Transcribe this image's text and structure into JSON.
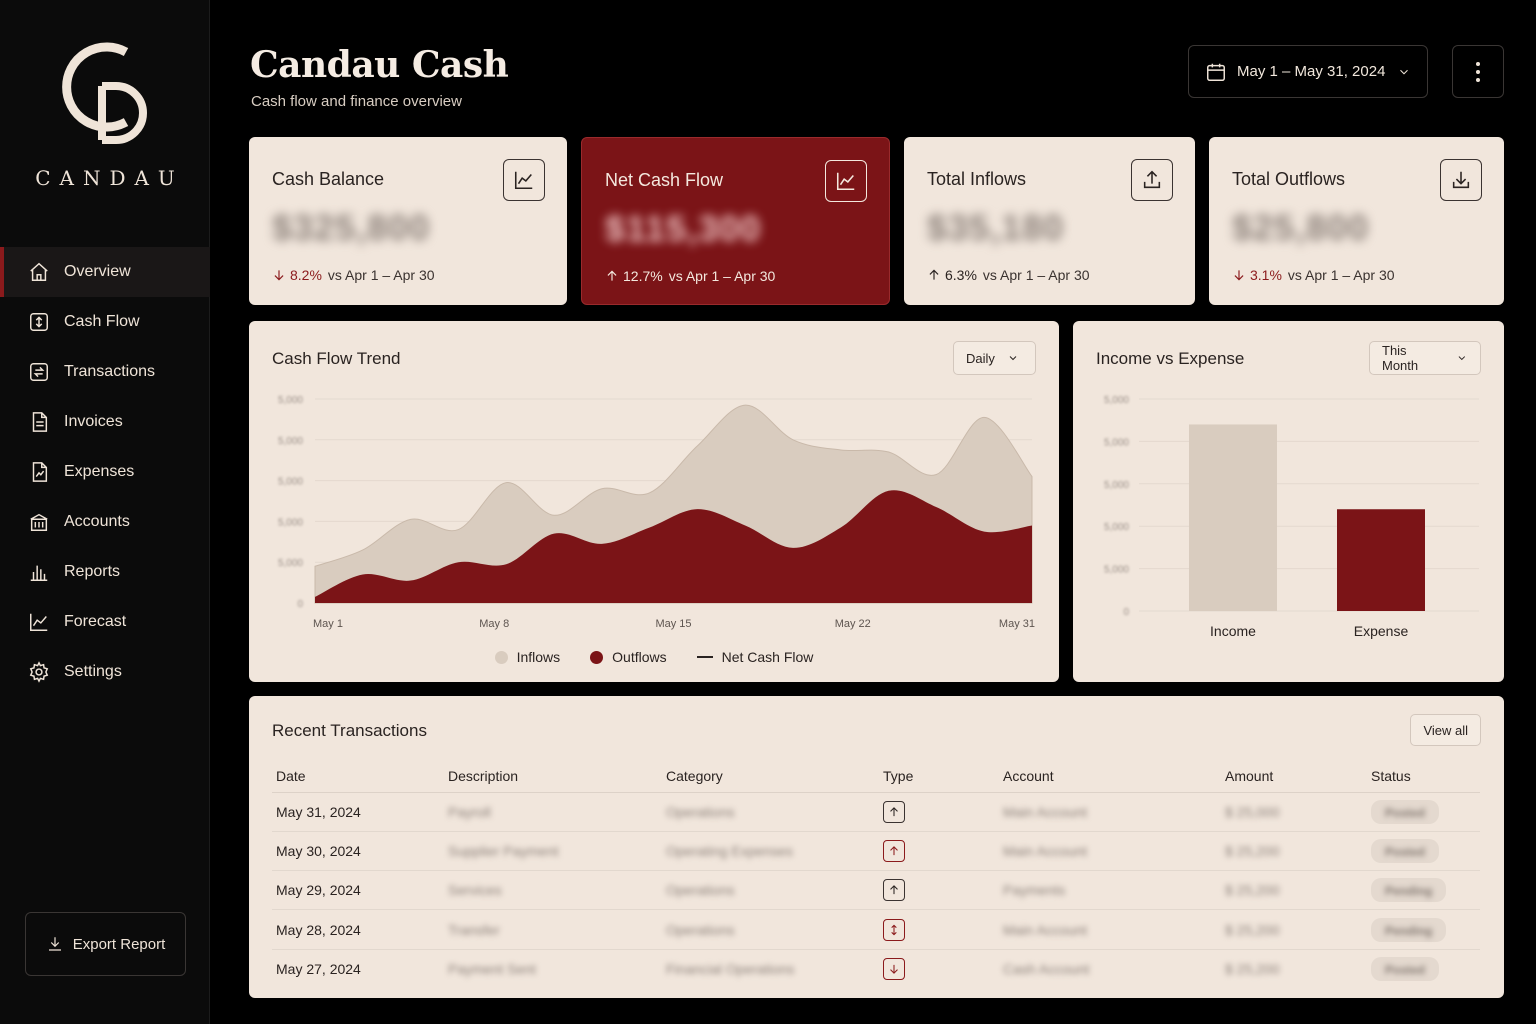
{
  "brand": {
    "wordmark": "CANDAU"
  },
  "header": {
    "title": "Candau Cash",
    "subtitle": "Cash flow and finance overview",
    "date_range": "May 1 – May 31, 2024"
  },
  "nav": {
    "items": [
      {
        "label": "Overview",
        "icon": "home-icon",
        "active": true
      },
      {
        "label": "Cash Flow",
        "icon": "cash-flow-icon"
      },
      {
        "label": "Transactions",
        "icon": "transactions-icon"
      },
      {
        "label": "Invoices",
        "icon": "invoice-icon"
      },
      {
        "label": "Expenses",
        "icon": "expense-icon"
      },
      {
        "label": "Accounts",
        "icon": "bank-icon"
      },
      {
        "label": "Reports",
        "icon": "bar-chart-icon"
      },
      {
        "label": "Forecast",
        "icon": "forecast-icon"
      },
      {
        "label": "Settings",
        "icon": "gear-icon"
      }
    ],
    "export_label": "Export Report"
  },
  "kpis": [
    {
      "label": "Cash Balance",
      "value": "$325,800",
      "direction": "down",
      "pct": "8.2%",
      "compare": "vs Apr 1 – Apr 30",
      "icon": "line-chart-icon"
    },
    {
      "label": "Net Cash Flow",
      "value": "$115,300",
      "direction": "up",
      "pct": "12.7%",
      "compare": "vs Apr 1 – Apr 30",
      "icon": "line-chart-icon",
      "highlight": true
    },
    {
      "label": "Total Inflows",
      "value": "$35,180",
      "direction": "up",
      "pct": "6.3%",
      "compare": "vs Apr 1 – Apr 30",
      "icon": "upload-icon"
    },
    {
      "label": "Total Outflows",
      "value": "$25,800",
      "direction": "down",
      "pct": "3.1%",
      "compare": "vs Apr 1 – Apr 30",
      "icon": "download-icon"
    }
  ],
  "trend": {
    "title": "Cash Flow Trend",
    "period": "Daily",
    "legend": {
      "inflows": "Inflows",
      "outflows": "Outflows",
      "net": "Net Cash Flow"
    }
  },
  "income_expense": {
    "title": "Income vs Expense",
    "period": "This Month"
  },
  "chart_data": [
    {
      "type": "area",
      "title": "Cash Flow Trend",
      "x": [
        "May 1",
        "May 3",
        "May 5",
        "May 7",
        "May 9",
        "May 11",
        "May 13",
        "May 15",
        "May 17",
        "May 19",
        "May 21",
        "May 23",
        "May 25",
        "May 27",
        "May 29",
        "May 31"
      ],
      "x_tick_labels": [
        "May 1",
        "May 8",
        "May 15",
        "May 22",
        "May 31"
      ],
      "y_tick_labels": [
        "0",
        "5,000",
        "5,000",
        "5,000",
        "5,000",
        "5,000"
      ],
      "ylim": [
        0,
        10000
      ],
      "series": [
        {
          "name": "Inflows",
          "color": "#d9ccbf",
          "values": [
            1800,
            2600,
            4100,
            3600,
            5900,
            4300,
            5600,
            5400,
            7700,
            9700,
            8000,
            7500,
            7400,
            6300,
            9100,
            6200
          ]
        },
        {
          "name": "Outflows",
          "color": "#7b1417",
          "values": [
            300,
            1400,
            1100,
            2000,
            1900,
            3400,
            2900,
            3700,
            4600,
            3800,
            2700,
            3700,
            5500,
            4700,
            3500,
            3800
          ]
        }
      ]
    },
    {
      "type": "bar",
      "title": "Income vs Expense",
      "categories": [
        "Income",
        "Expense"
      ],
      "values": [
        8800,
        4800
      ],
      "colors": [
        "#d9ccbf",
        "#7b1417"
      ],
      "y_tick_labels": [
        "0",
        "5,000",
        "5,000",
        "5,000",
        "5,000",
        "5,000"
      ],
      "ylim": [
        0,
        10000
      ]
    }
  ],
  "transactions": {
    "title": "Recent Transactions",
    "view_all": "View all",
    "columns": [
      "Date",
      "Description",
      "Category",
      "Type",
      "Account",
      "Amount",
      "Status"
    ],
    "rows": [
      {
        "date": "May 31, 2024",
        "description": "Payroll",
        "category": "Operations",
        "type": "up",
        "account": "Main Account",
        "amount": "$ 25,000",
        "status": "Posted"
      },
      {
        "date": "May 30, 2024",
        "description": "Supplier Payment",
        "category": "Operating Expenses",
        "type": "up",
        "account": "Main Account",
        "amount": "$ 25,200",
        "status": "Posted"
      },
      {
        "date": "May 29, 2024",
        "description": "Services",
        "category": "Operations",
        "type": "up",
        "account": "Payments",
        "amount": "$ 25,200",
        "status": "Pending"
      },
      {
        "date": "May 28, 2024",
        "description": "Transfer",
        "category": "Operations",
        "type": "both",
        "account": "Main Account",
        "amount": "$ 25,200",
        "status": "Pending"
      },
      {
        "date": "May 27, 2024",
        "description": "Payment Sent",
        "category": "Financial Operations",
        "type": "down",
        "account": "Cash Account",
        "amount": "$ 25,200",
        "status": "Posted"
      }
    ]
  }
}
